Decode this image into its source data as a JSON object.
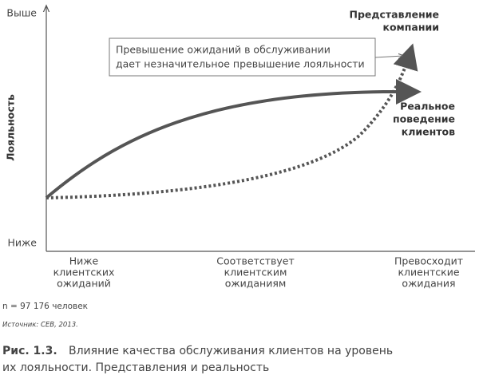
{
  "axis": {
    "y_label": "Лояльность",
    "y_high": "Выше",
    "y_low": "Ниже",
    "x_labels": [
      [
        "Ниже",
        "клиентских",
        "ожиданий"
      ],
      [
        "Соответствует",
        "клиентским",
        "ожиданиям"
      ],
      [
        "Превосходит",
        "клиентские",
        "ожидания"
      ]
    ]
  },
  "callout": [
    "Превышение ожиданий в обслуживании",
    "дает незначительное превышение лояльности"
  ],
  "perception_label": [
    "Представление",
    "компании"
  ],
  "reality_label": [
    "Реальное",
    "поведение",
    "клиентов"
  ],
  "sample_note": "n = 97 176 человек",
  "source": "Источник: CEB, 2013.",
  "caption": {
    "number": "Рис. 1.3.",
    "lines": [
      "Влияние качества обслуживания клиентов на уровень",
      "их лояльности. Представления и реальность"
    ]
  }
}
